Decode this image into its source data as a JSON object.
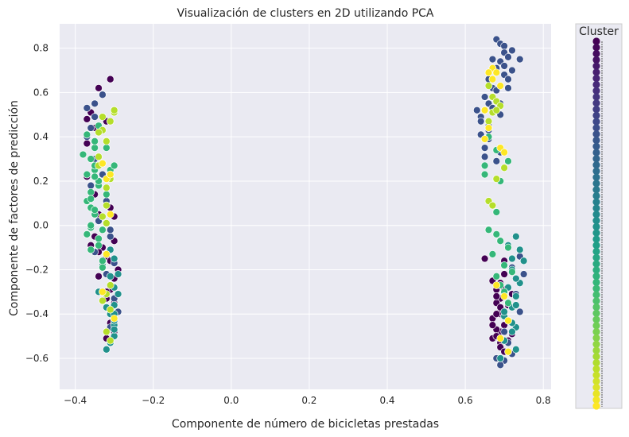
{
  "chart_data": {
    "type": "scatter",
    "title": "Visualización de clusters en 2D utilizando PCA",
    "xlabel": "Componente de número de bicicletas prestadas",
    "ylabel": "Componente de factores de predicción",
    "xlim": [
      -0.44,
      0.82
    ],
    "ylim": [
      -0.74,
      0.91
    ],
    "x_ticks": [
      -0.4,
      -0.2,
      0.0,
      0.2,
      0.4,
      0.6,
      0.8
    ],
    "x_tick_labels": [
      "−0.4",
      "−0.2",
      "0.0",
      "0.2",
      "0.4",
      "0.6",
      "0.8"
    ],
    "y_ticks": [
      -0.6,
      -0.4,
      -0.2,
      0.0,
      0.2,
      0.4,
      0.6,
      0.8
    ],
    "y_tick_labels": [
      "−0.6",
      "−0.4",
      "−0.2",
      "0.0",
      "0.2",
      "0.4",
      "0.6",
      "0.8"
    ],
    "grid": true,
    "background": "#eaeaf2",
    "colormap": "viridis",
    "legend": {
      "title": "Cluster",
      "placement": "outside-right"
    },
    "colors": {
      "viridis_stops": [
        "#440154",
        "#482878",
        "#3e4989",
        "#31688e",
        "#26828e",
        "#1f9e89",
        "#35b779",
        "#6ece58",
        "#b5de2b",
        "#fde725"
      ]
    },
    "point_groups": [
      {
        "x": [
          -0.37,
          -0.35,
          -0.37,
          -0.34,
          -0.31,
          -0.36,
          -0.37,
          -0.35,
          -0.32,
          -0.31,
          -0.34,
          -0.36,
          -0.35,
          -0.3,
          -0.32,
          -0.34,
          -0.31,
          -0.29,
          -0.32,
          -0.33,
          -0.3,
          -0.31,
          -0.31,
          -0.31,
          -0.3,
          -0.3,
          -0.3,
          -0.32,
          -0.32,
          -0.34,
          -0.3
        ],
        "y": [
          0.48,
          0.44,
          0.37,
          0.62,
          0.66,
          0.51,
          0.22,
          0.14,
          0.47,
          0.08,
          0.05,
          -0.09,
          -0.05,
          -0.07,
          -0.14,
          -0.23,
          -0.16,
          -0.2,
          -0.33,
          -0.1,
          -0.24,
          -0.38,
          -0.44,
          -0.29,
          -0.35,
          -0.48,
          -0.44,
          -0.51,
          -0.3,
          -0.12,
          0.04
        ],
        "color": "#440154"
      },
      {
        "x": [
          -0.37,
          -0.35,
          -0.33,
          -0.35,
          -0.37,
          -0.36,
          -0.35,
          -0.33,
          -0.34,
          -0.35,
          -0.31,
          -0.32,
          -0.3,
          -0.29,
          -0.31,
          -0.3,
          -0.31,
          -0.32,
          -0.35,
          -0.36
        ],
        "y": [
          0.53,
          0.55,
          0.59,
          0.49,
          0.4,
          0.44,
          0.27,
          0.23,
          0.02,
          -0.12,
          -0.05,
          -0.22,
          -0.33,
          -0.39,
          -0.46,
          -0.17,
          -0.02,
          0.11,
          0.3,
          0.18
        ],
        "color": "#3b528b"
      },
      {
        "x": [
          -0.33,
          -0.31,
          -0.3,
          -0.3,
          -0.31,
          -0.3,
          -0.29,
          -0.3,
          -0.31,
          -0.32,
          -0.3,
          -0.32,
          -0.34,
          -0.29,
          -0.3,
          -0.31,
          -0.3,
          -0.3
        ],
        "y": [
          -0.18,
          -0.23,
          -0.28,
          -0.36,
          -0.4,
          -0.45,
          -0.31,
          -0.5,
          -0.53,
          -0.56,
          -0.43,
          -0.37,
          -0.3,
          -0.22,
          -0.15,
          -0.11,
          -0.4,
          -0.47
        ],
        "color": "#21918c"
      },
      {
        "x": [
          -0.37,
          -0.38,
          -0.35,
          -0.37,
          -0.35,
          -0.34,
          -0.36,
          -0.35,
          -0.36,
          -0.37,
          -0.36,
          -0.33,
          -0.37,
          -0.34,
          -0.36,
          -0.33,
          -0.36,
          -0.35,
          -0.34,
          -0.31,
          -0.35,
          -0.35,
          -0.32,
          -0.36,
          -0.34,
          -0.33,
          -0.36,
          -0.32,
          -0.34,
          -0.35,
          -0.3
        ],
        "y": [
          0.41,
          0.32,
          0.35,
          0.23,
          0.25,
          0.18,
          0.15,
          0.05,
          0.08,
          0.11,
          -0.01,
          -0.02,
          -0.04,
          -0.06,
          -0.11,
          -0.16,
          0.3,
          0.27,
          0.2,
          0.25,
          0.07,
          0.38,
          0.35,
          0.12,
          -0.09,
          -0.19,
          0.0,
          0.14,
          0.45,
          0.22,
          0.27
        ],
        "color": "#35b779"
      },
      {
        "x": [
          -0.33,
          -0.3,
          -0.33,
          -0.32,
          -0.34,
          -0.31,
          -0.3,
          -0.34,
          -0.32,
          -0.33,
          -0.31,
          -0.32,
          -0.33,
          -0.31,
          -0.31,
          -0.32,
          -0.34,
          -0.32,
          -0.31,
          -0.32
        ],
        "y": [
          0.49,
          0.51,
          0.43,
          0.38,
          0.31,
          0.21,
          0.52,
          0.27,
          0.17,
          0.04,
          -0.27,
          -0.31,
          -0.34,
          -0.38,
          -0.52,
          -0.48,
          0.42,
          0.09,
          0.47,
          0.01
        ],
        "color": "#b5de2b"
      },
      {
        "x": [
          -0.32,
          -0.31,
          -0.3,
          -0.33,
          -0.31,
          -0.32,
          -0.33
        ],
        "y": [
          0.21,
          0.23,
          -0.42,
          -0.3,
          0.05,
          -0.13,
          0.28
        ],
        "color": "#fde725"
      },
      {
        "x": [
          0.69,
          0.7,
          0.69,
          0.71,
          0.68,
          0.69,
          0.67,
          0.7,
          0.69,
          0.72,
          0.67,
          0.69,
          0.69,
          0.7,
          0.68,
          0.71,
          0.69,
          0.7,
          0.72,
          0.68,
          0.67,
          0.7,
          0.71,
          0.69,
          0.67,
          0.68,
          0.68,
          0.68,
          0.65,
          0.7
        ],
        "y": [
          -0.26,
          -0.29,
          -0.33,
          -0.36,
          -0.35,
          -0.4,
          -0.42,
          -0.45,
          -0.48,
          -0.49,
          -0.51,
          -0.53,
          -0.55,
          -0.57,
          -0.47,
          -0.43,
          -0.39,
          -0.22,
          -0.31,
          -0.29,
          -0.25,
          -0.16,
          -0.52,
          -0.37,
          -0.45,
          -0.5,
          -0.4,
          -0.32,
          -0.15,
          -0.41
        ],
        "color": "#440154"
      },
      {
        "x": [
          0.68,
          0.69,
          0.7,
          0.7,
          0.71,
          0.69,
          0.72,
          0.7,
          0.68,
          0.66,
          0.67,
          0.65,
          0.66,
          0.67,
          0.64,
          0.66,
          0.64,
          0.69,
          0.7,
          0.71,
          0.68,
          0.67,
          0.72,
          0.74,
          0.71,
          0.69,
          0.66,
          0.68,
          0.69,
          0.65,
          0.64,
          0.66,
          0.63,
          0.65,
          0.74,
          0.72,
          0.75,
          0.7,
          0.73,
          0.74,
          0.71,
          0.72,
          0.68,
          0.7,
          0.69
        ],
        "y": [
          0.84,
          0.82,
          0.81,
          0.78,
          0.76,
          0.74,
          0.79,
          0.72,
          0.71,
          0.66,
          0.62,
          0.58,
          0.55,
          0.53,
          0.49,
          0.45,
          0.41,
          0.55,
          0.68,
          0.66,
          0.61,
          0.75,
          0.7,
          0.75,
          0.62,
          0.5,
          0.43,
          0.29,
          0.33,
          0.35,
          0.47,
          0.39,
          0.52,
          0.31,
          -0.14,
          -0.19,
          -0.22,
          -0.48,
          -0.31,
          -0.39,
          -0.53,
          -0.58,
          -0.6,
          -0.61,
          -0.63
        ],
        "color": "#3b528b"
      },
      {
        "x": [
          0.73,
          0.74,
          0.75,
          0.72,
          0.74,
          0.71,
          0.73,
          0.72,
          0.7,
          0.71,
          0.73,
          0.73,
          0.72,
          0.7,
          0.73,
          0.69,
          0.73,
          0.72,
          0.71,
          0.7,
          0.72
        ],
        "y": [
          -0.05,
          -0.11,
          -0.16,
          -0.2,
          -0.26,
          -0.28,
          -0.32,
          -0.37,
          -0.41,
          -0.43,
          -0.24,
          -0.46,
          -0.48,
          -0.52,
          -0.56,
          -0.6,
          -0.36,
          -0.15,
          -0.09,
          -0.39,
          -0.44
        ],
        "color": "#21918c"
      },
      {
        "x": [
          0.66,
          0.68,
          0.69,
          0.71,
          0.67,
          0.7,
          0.72,
          0.68,
          0.69,
          0.7,
          0.71,
          0.66,
          0.68,
          0.65,
          0.65,
          0.69,
          0.71,
          0.68
        ],
        "y": [
          -0.02,
          -0.04,
          -0.07,
          -0.1,
          -0.13,
          -0.18,
          -0.21,
          -0.23,
          -0.27,
          -0.3,
          -0.35,
          0.4,
          0.34,
          0.27,
          0.23,
          0.2,
          0.29,
          0.06
        ],
        "color": "#35b779"
      },
      {
        "x": [
          0.66,
          0.67,
          0.68,
          0.67,
          0.69,
          0.66,
          0.68,
          0.7,
          0.66,
          0.67,
          0.66,
          0.68
        ],
        "y": [
          0.63,
          0.58,
          0.56,
          0.51,
          0.54,
          0.47,
          0.21,
          0.26,
          0.11,
          0.09,
          0.44,
          0.52
        ],
        "color": "#b5de2b"
      },
      {
        "x": [
          0.67,
          0.68,
          0.66,
          0.67,
          0.69,
          0.65,
          0.66,
          0.65,
          0.69,
          0.7,
          0.68,
          0.7,
          0.71,
          0.69,
          0.71
        ],
        "y": [
          0.71,
          0.69,
          0.69,
          0.66,
          0.63,
          0.52,
          0.44,
          0.39,
          0.35,
          0.33,
          -0.27,
          -0.32,
          -0.43,
          -0.51,
          -0.57
        ],
        "color": "#fde725"
      }
    ]
  }
}
